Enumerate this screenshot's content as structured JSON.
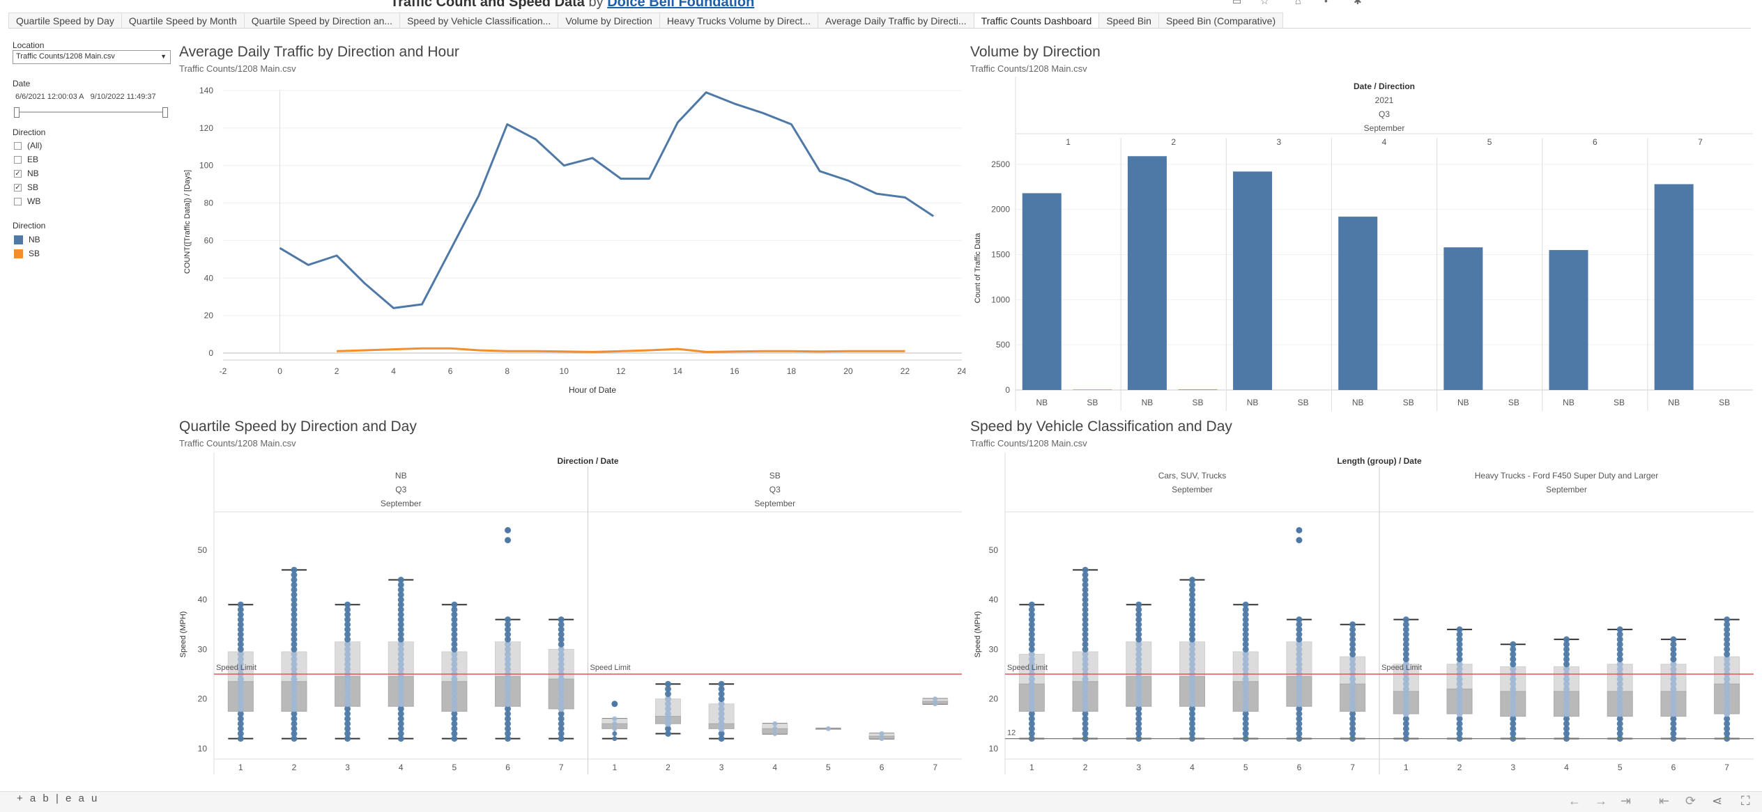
{
  "header": {
    "title": "Traffic Count and Speed Data",
    "by": "by",
    "org": "Dolce Bell Foundation"
  },
  "tabs": [
    "Quartile Speed by Day",
    "Quartile Speed by Month",
    "Quartile Speed by Direction an...",
    "Speed by Vehicle Classification...",
    "Volume by Direction",
    "Heavy Trucks Volume by Direct...",
    "Average Daily Traffic by Directi...",
    "Traffic Counts Dashboard",
    "Speed Bin",
    "Speed Bin (Comparative)"
  ],
  "active_tab": 7,
  "filters": {
    "location_label": "Location",
    "location_value": "Traffic Counts/1208 Main.csv",
    "date_label": "Date",
    "date_start": "6/6/2021 12:00:03 A",
    "date_end": "9/10/2022 11:49:37",
    "direction_label": "Direction",
    "direction_items": [
      {
        "label": "(All)",
        "checked": false
      },
      {
        "label": "EB",
        "checked": false
      },
      {
        "label": "NB",
        "checked": true
      },
      {
        "label": "SB",
        "checked": true
      },
      {
        "label": "WB",
        "checked": false
      }
    ],
    "legend_label": "Direction",
    "legend_items": [
      {
        "label": "NB",
        "color": "#4e79a7"
      },
      {
        "label": "SB",
        "color": "#f28e2b"
      }
    ]
  },
  "charts": {
    "adt": {
      "title": "Average Daily Traffic by Direction and Hour",
      "subtitle": "Traffic Counts/1208 Main.csv"
    },
    "volume": {
      "title": "Volume by Direction",
      "subtitle": "Traffic Counts/1208 Main.csv"
    },
    "quartile": {
      "title": "Quartile Speed by Direction and Day",
      "subtitle": "Traffic Counts/1208 Main.csv"
    },
    "classification": {
      "title": "Speed by Vehicle Classification and Day",
      "subtitle": "Traffic Counts/1208 Main.csv"
    }
  },
  "chart_data": [
    {
      "id": "adt",
      "type": "line",
      "xlabel": "Hour of Date",
      "ylabel": "COUNT([Traffic Data]) / [Days]",
      "xlim": [
        -2,
        24
      ],
      "ylim": [
        0,
        140
      ],
      "xticks": [
        -2,
        0,
        2,
        4,
        6,
        8,
        10,
        12,
        14,
        16,
        18,
        20,
        22,
        24
      ],
      "yticks": [
        0,
        20,
        40,
        60,
        80,
        100,
        120,
        140
      ],
      "series": [
        {
          "name": "NB",
          "color": "#4e79a7",
          "x": [
            0,
            1,
            2,
            3,
            4,
            5,
            6,
            7,
            8,
            9,
            10,
            11,
            12,
            13,
            14,
            15,
            16,
            17,
            18,
            19,
            20,
            21,
            22,
            23
          ],
          "y": [
            56,
            47,
            52,
            37,
            24,
            26,
            55,
            84,
            122,
            114,
            100,
            104,
            93,
            93,
            123,
            139,
            133,
            128,
            122,
            97,
            92,
            85,
            83,
            73
          ]
        },
        {
          "name": "SB",
          "color": "#f28e2b",
          "x": [
            2,
            3,
            4,
            5,
            6,
            7,
            8,
            9,
            10,
            11,
            12,
            13,
            14,
            15,
            16,
            17,
            18,
            19,
            20,
            21,
            22
          ],
          "y": [
            1,
            1.5,
            2,
            2.5,
            2.5,
            1.5,
            1,
            1,
            0.8,
            0.6,
            1,
            1.5,
            2.2,
            0.6,
            0.8,
            1,
            1,
            0.8,
            1,
            1,
            1
          ]
        }
      ]
    },
    {
      "id": "volume",
      "type": "bar",
      "header_label": "Date / Direction",
      "year": "2021",
      "quarter": "Q3",
      "month": "September",
      "ylabel": "Count of Traffic Data",
      "ylim": [
        0,
        2700
      ],
      "yticks": [
        0,
        500,
        1000,
        1500,
        2000,
        2500
      ],
      "categories": [
        "1",
        "2",
        "3",
        "4",
        "5",
        "6",
        "7"
      ],
      "series": [
        {
          "name": "NB",
          "color": "#4e79a7",
          "values": [
            2180,
            2590,
            2420,
            1920,
            1580,
            1550,
            2280
          ]
        },
        {
          "name": "SB",
          "color": "#f28e2b",
          "values": [
            6,
            8,
            0,
            0,
            0,
            0,
            0
          ]
        }
      ]
    },
    {
      "id": "quartile",
      "type": "box",
      "header_label": "Direction / Date",
      "ylabel": "Speed (MPH)",
      "ylim": [
        9,
        57
      ],
      "yticks": [
        10,
        20,
        30,
        40,
        50
      ],
      "speed_limit": 25,
      "speed_limit_label": "Speed Limit",
      "panels": [
        {
          "label": "NB",
          "quarter": "Q3",
          "month": "September",
          "categories": [
            "1",
            "2",
            "3",
            "4",
            "5",
            "6",
            "7"
          ],
          "boxes": [
            {
              "min": 12,
              "q1": 17.5,
              "median": 23.5,
              "q3": 29.5,
              "max": 39
            },
            {
              "min": 12,
              "q1": 17.5,
              "median": 23.5,
              "q3": 29.5,
              "max": 46
            },
            {
              "min": 12,
              "q1": 18.5,
              "median": 24.5,
              "q3": 31.5,
              "max": 39
            },
            {
              "min": 12,
              "q1": 18.5,
              "median": 24.5,
              "q3": 31.5,
              "max": 44
            },
            {
              "min": 12,
              "q1": 17.5,
              "median": 23.5,
              "q3": 29.5,
              "max": 39
            },
            {
              "min": 12,
              "q1": 18.5,
              "median": 24.5,
              "q3": 31.5,
              "max": 36,
              "outliers": [
                52,
                54
              ]
            },
            {
              "min": 12,
              "q1": 18,
              "median": 24,
              "q3": 30,
              "max": 36
            }
          ]
        },
        {
          "label": "SB",
          "quarter": "Q3",
          "month": "September",
          "categories": [
            "1",
            "2",
            "3",
            "4",
            "5",
            "6",
            "7"
          ],
          "boxes": [
            {
              "min": 12,
              "q1": 14,
              "median": 15,
              "q3": 16,
              "max": 16,
              "outliers": [
                19
              ]
            },
            {
              "min": 13,
              "q1": 15,
              "median": 16.5,
              "q3": 20,
              "max": 23
            },
            {
              "min": 12,
              "q1": 14,
              "median": 15,
              "q3": 19,
              "max": 23
            },
            {
              "min": 13,
              "q1": 13,
              "median": 14,
              "q3": 15,
              "max": 15
            },
            {
              "min": 14,
              "q1": 14,
              "median": 14,
              "q3": 14,
              "max": 14
            },
            {
              "min": 12,
              "q1": 12,
              "median": 12.5,
              "q3": 13,
              "max": 13
            },
            {
              "min": 19,
              "q1": 19,
              "median": 19.5,
              "q3": 20,
              "max": 20
            }
          ]
        }
      ]
    },
    {
      "id": "classification",
      "type": "box",
      "header_label": "Length (group) / Date",
      "ylabel": "Speed (MPH)",
      "ylim": [
        9,
        57
      ],
      "yticks": [
        10,
        20,
        30,
        40,
        50
      ],
      "speed_limit": 25,
      "speed_limit_label": "Speed Limit",
      "ref_line": 12,
      "ref_line_label": "12",
      "panels": [
        {
          "label": "Cars, SUV, Trucks",
          "month": "September",
          "categories": [
            "1",
            "2",
            "3",
            "4",
            "5",
            "6",
            "7"
          ],
          "boxes": [
            {
              "min": 12,
              "q1": 17.5,
              "median": 23,
              "q3": 29,
              "max": 39
            },
            {
              "min": 12,
              "q1": 17.5,
              "median": 23.5,
              "q3": 29.5,
              "max": 46
            },
            {
              "min": 12,
              "q1": 18.5,
              "median": 24.5,
              "q3": 31.5,
              "max": 39
            },
            {
              "min": 12,
              "q1": 18.5,
              "median": 24.5,
              "q3": 31.5,
              "max": 44
            },
            {
              "min": 12,
              "q1": 17.5,
              "median": 23.5,
              "q3": 29.5,
              "max": 39
            },
            {
              "min": 12,
              "q1": 18.5,
              "median": 24.5,
              "q3": 31.5,
              "max": 36,
              "outliers": [
                52,
                54
              ]
            },
            {
              "min": 12,
              "q1": 17.5,
              "median": 23,
              "q3": 28.5,
              "max": 35
            }
          ]
        },
        {
          "label": "Heavy Trucks - Ford F450 Super Duty and Larger",
          "month": "September",
          "categories": [
            "1",
            "2",
            "3",
            "4",
            "5",
            "6",
            "7"
          ],
          "boxes": [
            {
              "min": 12,
              "q1": 17,
              "median": 21.5,
              "q3": 27,
              "max": 36
            },
            {
              "min": 12,
              "q1": 17,
              "median": 22,
              "q3": 27,
              "max": 34
            },
            {
              "min": 12,
              "q1": 16.5,
              "median": 21.5,
              "q3": 26.5,
              "max": 31
            },
            {
              "min": 12,
              "q1": 16.5,
              "median": 21.5,
              "q3": 26.5,
              "max": 32
            },
            {
              "min": 12,
              "q1": 16.5,
              "median": 21.5,
              "q3": 27,
              "max": 34
            },
            {
              "min": 12,
              "q1": 16.5,
              "median": 21.5,
              "q3": 27,
              "max": 32
            },
            {
              "min": 12,
              "q1": 17,
              "median": 23,
              "q3": 28.5,
              "max": 36
            }
          ]
        }
      ]
    }
  ],
  "footer": {
    "logo": "+ a b | e a u"
  }
}
